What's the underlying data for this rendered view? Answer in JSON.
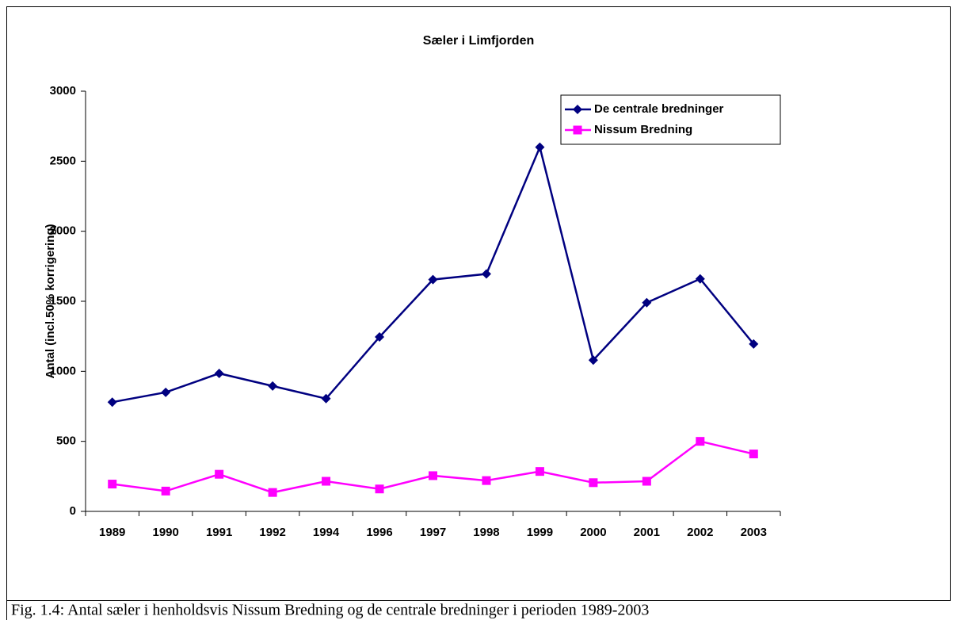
{
  "chart_data": {
    "type": "line",
    "title": "Sæler i Limfjorden",
    "y_label": "Antal (incl.50% korrigering)",
    "categories": [
      "1989",
      "1990",
      "1991",
      "1992",
      "1994",
      "1996",
      "1997",
      "1998",
      "1999",
      "2000",
      "2001",
      "2002",
      "2003"
    ],
    "series": [
      {
        "name": "De centrale bredninger",
        "color": "#000080",
        "marker": "diamond",
        "values": [
          780,
          850,
          985,
          895,
          805,
          1245,
          1655,
          1695,
          2600,
          1080,
          1490,
          1660,
          1195
        ]
      },
      {
        "name": "Nissum Bredning",
        "color": "#ff00ff",
        "marker": "square",
        "values": [
          195,
          145,
          265,
          135,
          215,
          160,
          255,
          220,
          285,
          205,
          215,
          500,
          410
        ]
      }
    ],
    "ylim": [
      0,
      3000
    ],
    "yticks": [
      0,
      500,
      1000,
      1500,
      2000,
      2500,
      3000
    ],
    "legend": "top-right"
  },
  "caption": "Fig. 1.4: Antal sæler i henholdsvis Nissum Bredning og de centrale bredninger i perioden 1989-2003"
}
